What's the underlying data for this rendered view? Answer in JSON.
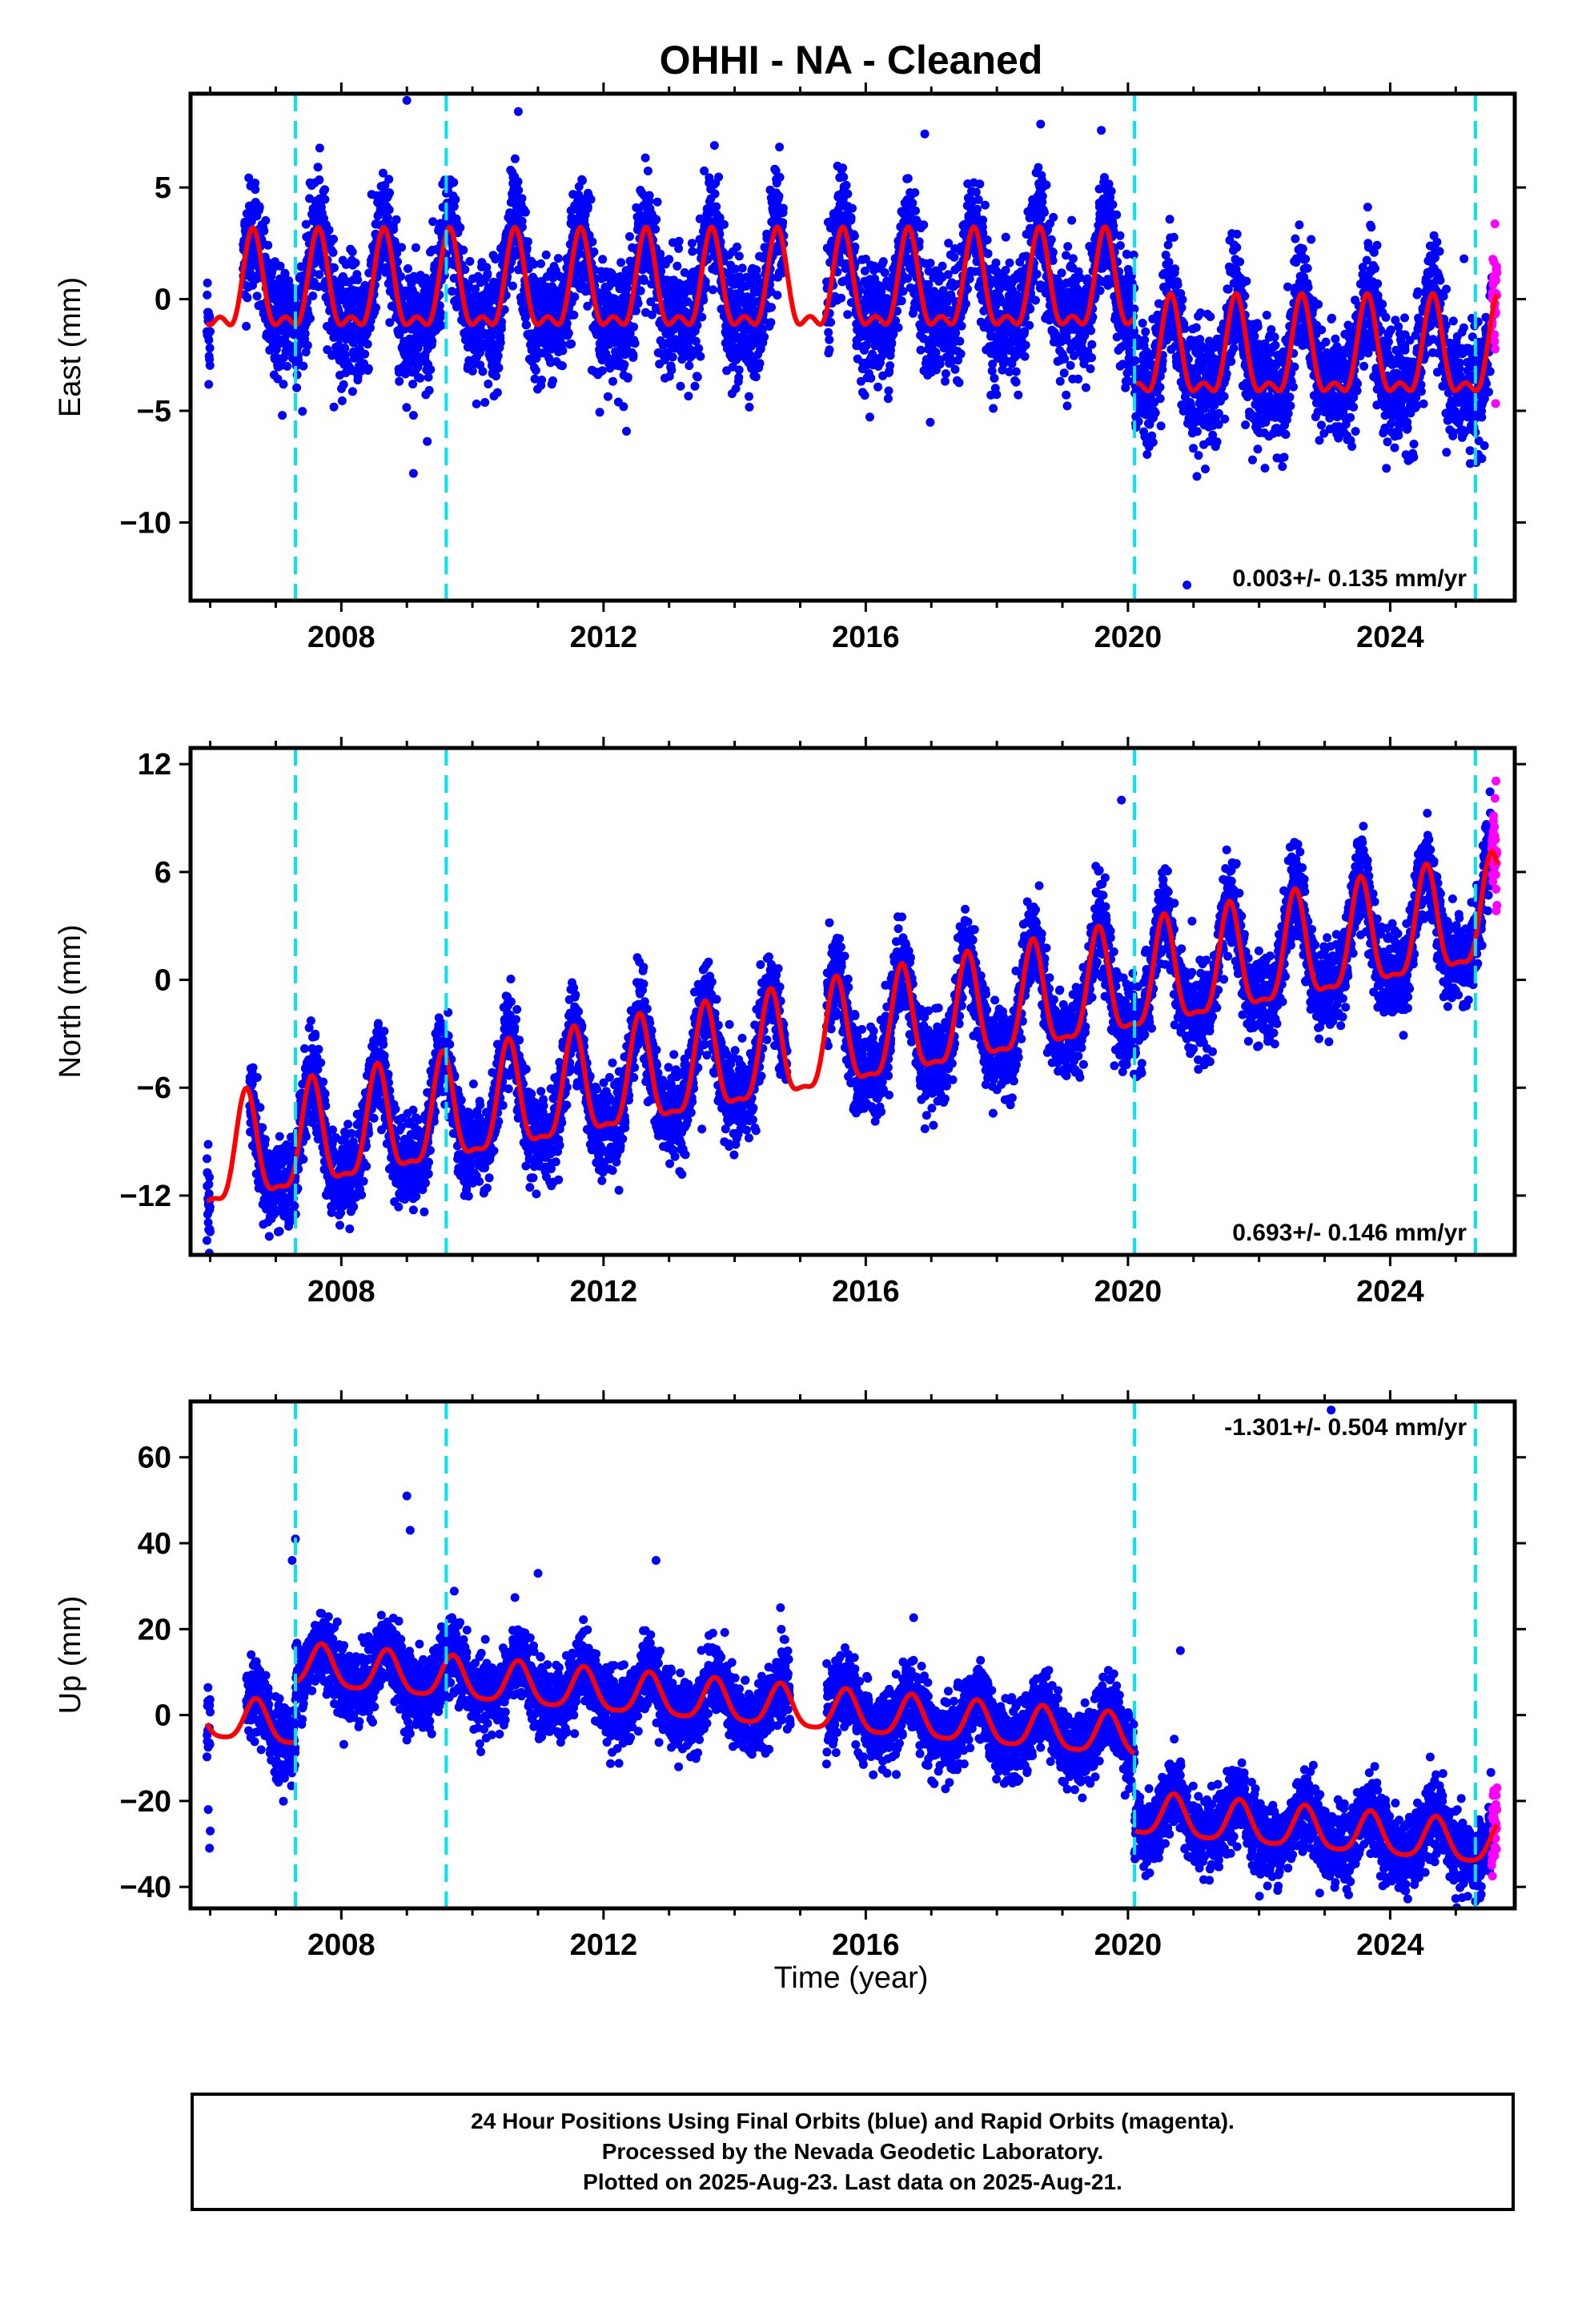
{
  "title": "OHHI  - NA - Cleaned",
  "xlabel": "Time (year)",
  "footer": {
    "line1": "24 Hour Positions Using Final Orbits (blue) and Rapid Orbits (magenta).",
    "line2": "Processed by the Nevada Geodetic Laboratory.",
    "line3": "Plotted on 2025-Aug-23. Last data on 2025-Aug-21."
  },
  "colors": {
    "final_orbits": "#0000ff",
    "rapid_orbits": "#ff00ff",
    "model_fit": "#ff0000",
    "equipment_change": "#00e5ee"
  },
  "chart_data": [
    {
      "type": "scatter",
      "component": "east",
      "ylabel": "East (mm)",
      "xlim": [
        2005.7,
        2025.9
      ],
      "ylim": [
        -13.5,
        9.2
      ],
      "x_ticks": [
        2008,
        2012,
        2016,
        2020,
        2024
      ],
      "y_ticks": [
        5,
        0,
        -5,
        -10
      ],
      "rate_label": "0.003+/- 0.135 mm/yr",
      "rate_position": "bottom-right",
      "equipment_changes": [
        2007.3,
        2009.6,
        2020.1,
        2025.3
      ],
      "model": {
        "offsets": [
          [
            2020.1,
            -3.0
          ]
        ],
        "annual_amp": 2.0,
        "semiannual_amp": 0.9,
        "annual_phase_year": 2006.65,
        "trend": 0.003,
        "intercept": 0.3
      },
      "data_start": 2005.95,
      "data_end": 2025.63,
      "rapid_start": 2025.55,
      "gaps": [
        [
          2006.0,
          2006.5
        ],
        [
          2014.75,
          2015.4
        ]
      ],
      "scatter_sigma": 1.3,
      "outliers": [
        [
          2009.0,
          8.9
        ],
        [
          2009.1,
          -7.8
        ],
        [
          2009.1,
          -5.2
        ],
        [
          2007.1,
          -5.2
        ],
        [
          2020.9,
          -12.8
        ],
        [
          2016.9,
          7.4
        ],
        [
          2010.7,
          8.4
        ],
        [
          2021.9,
          -7.2
        ]
      ]
    },
    {
      "type": "scatter",
      "component": "north",
      "ylabel": "North (mm)",
      "xlim": [
        2005.7,
        2025.9
      ],
      "ylim": [
        -15.3,
        12.9
      ],
      "x_ticks": [
        2008,
        2012,
        2016,
        2020,
        2024
      ],
      "y_ticks": [
        12,
        6,
        0,
        -6,
        -12
      ],
      "rate_label": "0.693+/- 0.146 mm/yr",
      "rate_position": "bottom-right",
      "equipment_changes": [
        2007.3,
        2009.6,
        2020.1,
        2025.3
      ],
      "model": {
        "offsets": [],
        "annual_amp": 2.9,
        "semiannual_amp": 0.9,
        "annual_phase_year": 2006.55,
        "trend": 0.693,
        "intercept": -10.2
      },
      "data_start": 2005.95,
      "data_end": 2025.63,
      "rapid_start": 2025.55,
      "gaps": [
        [
          2006.0,
          2006.6
        ],
        [
          2014.8,
          2015.4
        ]
      ],
      "scatter_sigma": 1.2,
      "outliers": [
        [
          2005.95,
          -14.5
        ],
        [
          2005.97,
          -13.5
        ],
        [
          2005.99,
          -12.8
        ],
        [
          2009.1,
          -12.8
        ],
        [
          2013.5,
          -8.3
        ],
        [
          2023.1,
          -2.4
        ],
        [
          2019.9,
          10.0
        ],
        [
          2016.3,
          -0.3
        ]
      ]
    },
    {
      "type": "scatter",
      "component": "up",
      "ylabel": "Up (mm)",
      "xlim": [
        2005.7,
        2025.9
      ],
      "ylim": [
        -45,
        73
      ],
      "x_ticks": [
        2008,
        2012,
        2016,
        2020,
        2024
      ],
      "y_ticks": [
        60,
        40,
        20,
        0,
        -20,
        -40
      ],
      "rate_label": "-1.301+/- 0.504 mm/yr",
      "rate_position": "top-right",
      "equipment_changes": [
        2007.3,
        2009.6,
        2020.1,
        2025.3
      ],
      "model": {
        "offsets": [
          [
            2007.3,
            14.0
          ],
          [
            2020.1,
            -18.0
          ]
        ],
        "annual_amp": 4.8,
        "semiannual_amp": 1.0,
        "annual_phase_year": 2006.7,
        "trend": -1.301,
        "intercept": -1.0
      },
      "data_start": 2005.95,
      "data_end": 2025.63,
      "rapid_start": 2025.55,
      "gaps": [
        [
          2006.0,
          2006.55
        ],
        [
          2014.85,
          2015.4
        ]
      ],
      "scatter_sigma": 4.2,
      "outliers": [
        [
          2009.0,
          51
        ],
        [
          2009.05,
          43
        ],
        [
          2012.8,
          36
        ],
        [
          2007.3,
          41
        ],
        [
          2007.25,
          36
        ],
        [
          2005.97,
          -22
        ],
        [
          2005.99,
          -31
        ],
        [
          2006.0,
          -27
        ],
        [
          2014.7,
          25
        ],
        [
          2020.8,
          15
        ],
        [
          2011.0,
          33
        ],
        [
          2023.1,
          71
        ]
      ]
    }
  ]
}
